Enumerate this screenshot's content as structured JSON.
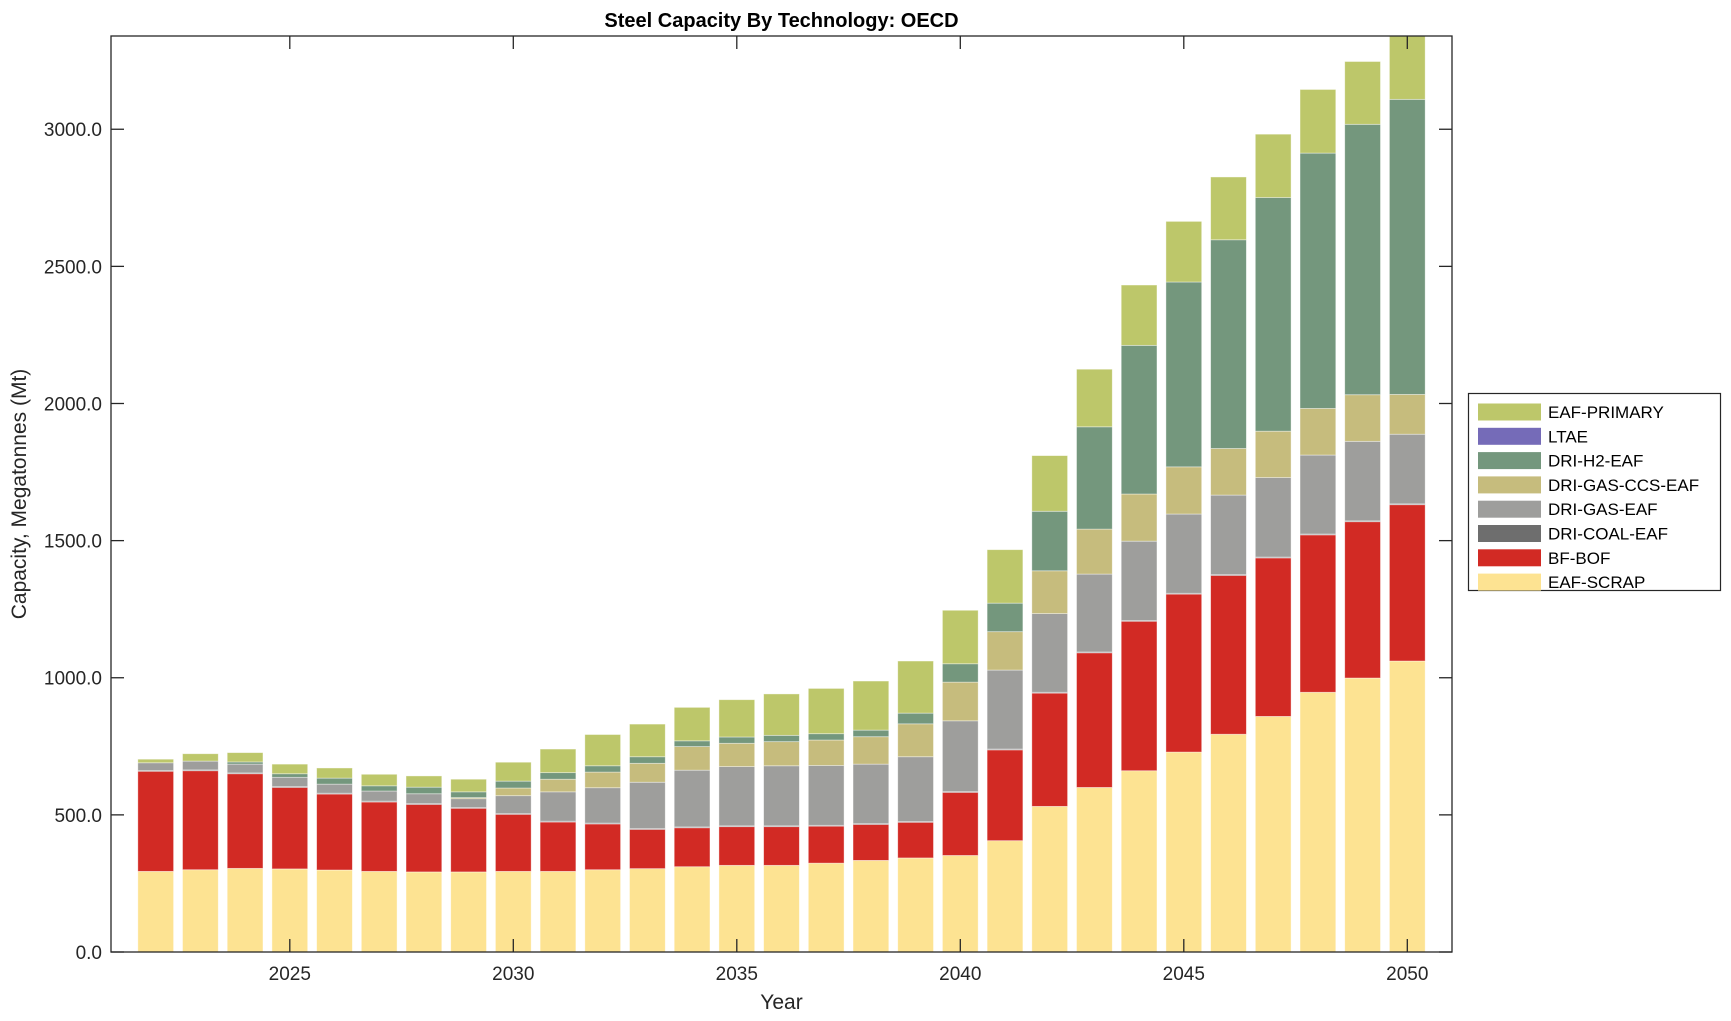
{
  "chart_data": {
    "type": "bar",
    "stacked": true,
    "title": "Steel Capacity By Technology: OECD",
    "xlabel": "Year",
    "ylabel": "Capacity, Megatonnes (Mt)",
    "xlim": [
      2021,
      2051
    ],
    "ylim": [
      0,
      3340
    ],
    "grid": false,
    "legend_position": "right",
    "x_ticks": [
      2025,
      2030,
      2035,
      2040,
      2045,
      2050
    ],
    "x_tick_labels": [
      "2025",
      "2030",
      "2035",
      "2040",
      "2045",
      "2050"
    ],
    "y_ticks": [
      0,
      500,
      1000,
      1500,
      2000,
      2500,
      3000
    ],
    "y_tick_labels": [
      "0.0",
      "500.0",
      "1000.0",
      "1500.0",
      "2000.0",
      "2500.0",
      "3000.0"
    ],
    "categories": [
      2022,
      2023,
      2024,
      2025,
      2026,
      2027,
      2028,
      2029,
      2030,
      2031,
      2032,
      2033,
      2034,
      2035,
      2036,
      2037,
      2038,
      2039,
      2040,
      2041,
      2042,
      2043,
      2044,
      2045,
      2046,
      2047,
      2048,
      2049,
      2050
    ],
    "series": [
      {
        "name": "EAF-SCRAP",
        "color": "#fde392",
        "values": [
          294,
          300,
          305,
          303,
          299,
          294,
          292,
          292,
          294,
          294,
          300,
          304,
          311,
          316,
          316,
          324,
          334,
          343,
          352,
          406,
          531,
          600,
          661,
          729,
          794,
          859,
          947,
          999,
          1061
        ]
      },
      {
        "name": "BF-BOF",
        "color": "#d22a24",
        "values": [
          365,
          361,
          345,
          297,
          277,
          253,
          246,
          232,
          208,
          180,
          167,
          143,
          142,
          141,
          141,
          135,
          131,
          130,
          230,
          331,
          413,
          491,
          545,
          576,
          579,
          578,
          574,
          570,
          570
        ]
      },
      {
        "name": "DRI-COAL-EAF",
        "color": "#6e6e6e",
        "values": [
          3,
          3,
          3,
          3,
          3,
          3,
          3,
          3,
          3,
          3,
          3,
          3,
          3,
          3,
          3,
          3,
          3,
          3,
          3,
          3,
          3,
          3,
          3,
          3,
          3,
          3,
          3,
          3,
          3
        ]
      },
      {
        "name": "DRI-GAS-EAF",
        "color": "#9e9e9c",
        "values": [
          28,
          32,
          32,
          34,
          33,
          37,
          36,
          32,
          65,
          107,
          129,
          169,
          207,
          216,
          219,
          218,
          217,
          236,
          258,
          288,
          287,
          284,
          289,
          289,
          290,
          290,
          288,
          290,
          254
        ]
      },
      {
        "name": "DRI-GAS-CCS-EAF",
        "color": "#c6bc7d",
        "values": [
          0,
          0,
          0,
          0,
          0,
          0,
          0,
          4,
          28,
          46,
          57,
          69,
          86,
          85,
          88,
          93,
          100,
          120,
          141,
          140,
          156,
          164,
          172,
          172,
          170,
          169,
          170,
          170,
          145
        ]
      },
      {
        "name": "DRI-H2-EAF",
        "color": "#74977d",
        "values": [
          0,
          0,
          8,
          13,
          22,
          19,
          24,
          21,
          25,
          24,
          23,
          24,
          21,
          23,
          23,
          23,
          24,
          39,
          67,
          104,
          217,
          373,
          542,
          674,
          761,
          852,
          931,
          986,
          1076
        ]
      },
      {
        "name": "LTAE",
        "color": "#756bb8",
        "values": [
          0,
          0,
          0,
          0,
          0,
          0,
          0,
          0,
          0,
          0,
          0,
          0,
          0,
          0,
          0,
          0,
          0,
          0,
          0,
          0,
          0,
          0,
          0,
          0,
          0,
          0,
          0,
          0,
          0
        ]
      },
      {
        "name": "EAF-PRIMARY",
        "color": "#bdc76a",
        "values": [
          13,
          27,
          34,
          35,
          37,
          42,
          41,
          46,
          69,
          86,
          114,
          119,
          122,
          136,
          151,
          165,
          179,
          190,
          195,
          195,
          203,
          210,
          220,
          221,
          229,
          231,
          232,
          229,
          240
        ]
      }
    ],
    "legend_order": [
      "EAF-PRIMARY",
      "LTAE",
      "DRI-H2-EAF",
      "DRI-GAS-CCS-EAF",
      "DRI-GAS-EAF",
      "DRI-COAL-EAF",
      "BF-BOF",
      "EAF-SCRAP"
    ]
  }
}
